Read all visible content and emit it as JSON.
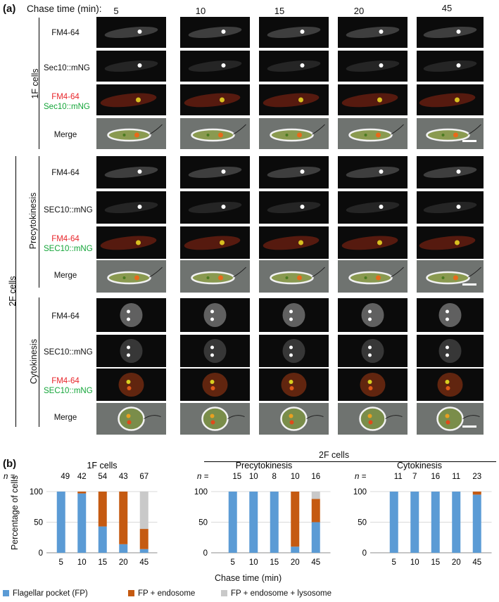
{
  "panel_a": {
    "label": "(a)",
    "chase_label": "Chase time (min):",
    "columns": [
      "5",
      "10",
      "15",
      "20",
      "45"
    ],
    "group_1f": "1F cells",
    "group_2f": "2F cells",
    "sub_precyto": "Precytokinesis",
    "sub_cyto": "Cytokinesis",
    "rows_1f": {
      "fm": "FM4-64",
      "sec": "Sec10::mNG",
      "overlay_red": "FM4-64",
      "overlay_green": "Sec10::mNG",
      "merge": "Merge"
    },
    "rows_2f": {
      "fm": "FM4-64",
      "sec": "SEC10::mNG",
      "overlay_red": "FM4-64",
      "overlay_green": "SEC10::mNG",
      "merge": "Merge"
    },
    "colors": {
      "red": "#e8262b",
      "green": "#13a538"
    }
  },
  "panel_b": {
    "label": "(b)",
    "group_2f": "2F cells",
    "ylabel": "Percentage of cells",
    "xlabel": "Chase time (min)",
    "n_prefix": "n =",
    "legend": [
      {
        "label": "Flagellar pocket (FP)",
        "color": "#5b9bd5"
      },
      {
        "label": "FP + endosome",
        "color": "#c55a11"
      },
      {
        "label": "FP + endosome + lysosome",
        "color": "#c9c9c9"
      }
    ]
  },
  "chart_data": [
    {
      "type": "bar",
      "title": "1F cells",
      "categories": [
        "5",
        "10",
        "15",
        "20",
        "45"
      ],
      "n": [
        "49",
        "42",
        "54",
        "43",
        "67"
      ],
      "ylim": [
        0,
        100
      ],
      "yticks": [
        "0",
        "50",
        "100"
      ],
      "series": [
        {
          "name": "Flagellar pocket (FP)",
          "values": [
            100,
            97,
            43,
            14,
            6
          ]
        },
        {
          "name": "FP + endosome",
          "values": [
            0,
            3,
            57,
            86,
            33
          ]
        },
        {
          "name": "FP + endosome + lysosome",
          "values": [
            0,
            0,
            0,
            0,
            61
          ]
        }
      ]
    },
    {
      "type": "bar",
      "title": "Precytokinesis",
      "categories": [
        "5",
        "10",
        "15",
        "20",
        "45"
      ],
      "n": [
        "15",
        "10",
        "8",
        "10",
        "16"
      ],
      "ylim": [
        0,
        100
      ],
      "yticks": [
        "0",
        "50",
        "100"
      ],
      "series": [
        {
          "name": "Flagellar pocket (FP)",
          "values": [
            100,
            100,
            100,
            10,
            50
          ]
        },
        {
          "name": "FP + endosome",
          "values": [
            0,
            0,
            0,
            90,
            38
          ]
        },
        {
          "name": "FP + endosome + lysosome",
          "values": [
            0,
            0,
            0,
            0,
            12
          ]
        }
      ]
    },
    {
      "type": "bar",
      "title": "Cytokinesis",
      "categories": [
        "5",
        "10",
        "15",
        "20",
        "45"
      ],
      "n": [
        "11",
        "7",
        "16",
        "11",
        "23"
      ],
      "ylim": [
        0,
        100
      ],
      "yticks": [
        "0",
        "50",
        "100"
      ],
      "series": [
        {
          "name": "Flagellar pocket (FP)",
          "values": [
            100,
            100,
            100,
            100,
            95
          ]
        },
        {
          "name": "FP + endosome",
          "values": [
            0,
            0,
            0,
            0,
            5
          ]
        },
        {
          "name": "FP + endosome + lysosome",
          "values": [
            0,
            0,
            0,
            0,
            0
          ]
        }
      ]
    }
  ]
}
